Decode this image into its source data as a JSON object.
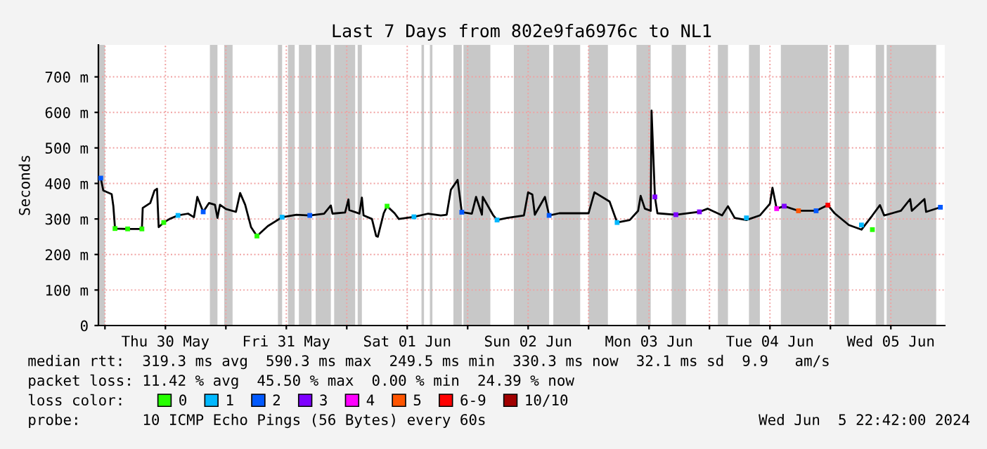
{
  "chart_data": {
    "type": "line",
    "title": "Last 7 Days from 802e9fa6976c to NL1",
    "ylabel": "Seconds",
    "xlim": [
      "2024-05-29T22:42",
      "2024-06-05T22:42"
    ],
    "xticks": [
      {
        "value": "2024-05-30T00:00",
        "label": null
      },
      {
        "value": "2024-05-30T12:00",
        "label": "Thu 30 May"
      },
      {
        "value": "2024-05-31T00:00",
        "label": null
      },
      {
        "value": "2024-05-31T12:00",
        "label": "Fri 31 May"
      },
      {
        "value": "2024-06-01T00:00",
        "label": null
      },
      {
        "value": "2024-06-01T12:00",
        "label": "Sat 01 Jun"
      },
      {
        "value": "2024-06-02T00:00",
        "label": null
      },
      {
        "value": "2024-06-02T12:00",
        "label": "Sun 02 Jun"
      },
      {
        "value": "2024-06-03T00:00",
        "label": null
      },
      {
        "value": "2024-06-03T12:00",
        "label": "Mon 03 Jun"
      },
      {
        "value": "2024-06-04T00:00",
        "label": null
      },
      {
        "value": "2024-06-04T12:00",
        "label": "Tue 04 Jun"
      },
      {
        "value": "2024-06-05T00:00",
        "label": null
      },
      {
        "value": "2024-06-05T12:00",
        "label": "Wed 05 Jun"
      }
    ],
    "ylim": [
      0,
      790
    ],
    "yticks": [
      0,
      {
        "value": 100,
        "label": "100 m"
      },
      {
        "value": 200,
        "label": "200 m"
      },
      {
        "value": 300,
        "label": "300 m"
      },
      {
        "value": 400,
        "label": "400 m"
      },
      {
        "value": 500,
        "label": "500 m"
      },
      {
        "value": 600,
        "label": "600 m"
      },
      {
        "value": 700,
        "label": "700 m"
      }
    ],
    "grid": true,
    "legend": "bottom",
    "legend_title": "loss color:",
    "series": [
      {
        "color": "#000000",
        "x": [
          "2024-05-29T23:10",
          "2024-05-29T23:40",
          "2024-05-30T01:20",
          "2024-05-30T01:40",
          "2024-05-30T02:00",
          "2024-05-30T04:30",
          "2024-05-30T07:20",
          "2024-05-30T07:30",
          "2024-05-30T09:00",
          "2024-05-30T09:50",
          "2024-05-30T10:20",
          "2024-05-30T10:40",
          "2024-05-30T11:40",
          "2024-05-30T12:50",
          "2024-05-30T14:30",
          "2024-05-30T16:30",
          "2024-05-30T17:40",
          "2024-05-30T18:20",
          "2024-05-30T19:30",
          "2024-05-30T20:40",
          "2024-05-30T21:50",
          "2024-05-30T22:20",
          "2024-05-30T22:50",
          "2024-05-31T00:00",
          "2024-05-31T02:00",
          "2024-05-31T02:50",
          "2024-05-31T03:50",
          "2024-05-31T05:00",
          "2024-05-31T06:10",
          "2024-05-31T08:20",
          "2024-05-31T11:10",
          "2024-05-31T14:00",
          "2024-05-31T16:40",
          "2024-05-31T19:30",
          "2024-05-31T20:50",
          "2024-05-31T21:10",
          "2024-05-31T23:40",
          "2024-06-01T00:20",
          "2024-06-01T00:30",
          "2024-06-01T02:30",
          "2024-06-01T03:00",
          "2024-06-01T03:20",
          "2024-06-01T05:00",
          "2024-06-01T05:50",
          "2024-06-01T06:10",
          "2024-06-01T07:20",
          "2024-06-01T08:00",
          "2024-06-01T09:30",
          "2024-06-01T10:20",
          "2024-06-01T13:20",
          "2024-06-01T16:10",
          "2024-06-01T18:40",
          "2024-06-01T19:50",
          "2024-06-01T20:40",
          "2024-06-01T22:00",
          "2024-06-01T22:50",
          "2024-06-02T00:50",
          "2024-06-02T01:40",
          "2024-06-02T02:50",
          "2024-06-02T03:00",
          "2024-06-02T05:00",
          "2024-06-02T05:50",
          "2024-06-02T07:50",
          "2024-06-02T11:10",
          "2024-06-02T12:00",
          "2024-06-02T12:50",
          "2024-06-02T13:20",
          "2024-06-02T15:20",
          "2024-06-02T16:10",
          "2024-06-02T18:10",
          "2024-06-02T19:50",
          "2024-06-03T00:00",
          "2024-06-03T01:10",
          "2024-06-03T04:10",
          "2024-06-03T05:40",
          "2024-06-03T08:10",
          "2024-06-03T09:50",
          "2024-06-03T10:20",
          "2024-06-03T11:10",
          "2024-06-03T12:20",
          "2024-06-03T12:30",
          "2024-06-03T13:10",
          "2024-06-03T13:40",
          "2024-06-03T17:20",
          "2024-06-03T22:00",
          "2024-06-03T23:40",
          "2024-06-04T02:30",
          "2024-06-04T03:40",
          "2024-06-04T05:00",
          "2024-06-04T07:20",
          "2024-06-04T10:00",
          "2024-06-04T12:00",
          "2024-06-04T12:30",
          "2024-06-04T13:20",
          "2024-06-04T14:50",
          "2024-06-04T17:40",
          "2024-06-04T21:10",
          "2024-06-04T23:30",
          "2024-06-05T00:50",
          "2024-06-05T03:40",
          "2024-06-05T06:10",
          "2024-06-05T08:20",
          "2024-06-05T09:50",
          "2024-06-05T10:40",
          "2024-06-05T14:00",
          "2024-06-05T15:50",
          "2024-06-05T16:10",
          "2024-06-05T18:40",
          "2024-06-05T19:00",
          "2024-06-05T21:50"
        ],
        "values": [
          415,
          380,
          370,
          336,
          273,
          272,
          272,
          331,
          345,
          380,
          385,
          277,
          290,
          300,
          310,
          315,
          305,
          362,
          320,
          345,
          340,
          303,
          340,
          328,
          320,
          373,
          340,
          277,
          252,
          280,
          305,
          312,
          310,
          315,
          338,
          315,
          318,
          355,
          325,
          315,
          360,
          310,
          300,
          252,
          250,
          316,
          336,
          316,
          300,
          306,
          315,
          310,
          312,
          382,
          410,
          319,
          315,
          362,
          312,
          362,
          312,
          297,
          303,
          310,
          375,
          369,
          312,
          362,
          310,
          316,
          316,
          316,
          375,
          349,
          290,
          297,
          323,
          365,
          329,
          323,
          605,
          362,
          316,
          312,
          320,
          329,
          310,
          336,
          303,
          297,
          310,
          343,
          388,
          329,
          336,
          323,
          323,
          339,
          316,
          283,
          270,
          310,
          339,
          310,
          323,
          356,
          323,
          356,
          320,
          333
        ]
      },
      {
        "type": "scatter",
        "name": "0",
        "color": "#26ff00",
        "marker": "square",
        "x": [
          "2024-05-30T02:00",
          "2024-05-30T04:30",
          "2024-05-30T07:20",
          "2024-05-30T11:40",
          "2024-05-31T06:10",
          "2024-06-01T08:00",
          "2024-06-05T08:20"
        ],
        "values": [
          273,
          272,
          272,
          290,
          252,
          336,
          270
        ]
      },
      {
        "type": "scatter",
        "name": "1",
        "color": "#00b8ff",
        "marker": "square",
        "x": [
          "2024-05-30T14:30",
          "2024-05-31T11:10",
          "2024-06-01T13:20",
          "2024-06-02T05:50",
          "2024-06-03T05:40",
          "2024-06-04T07:20",
          "2024-06-05T06:10"
        ],
        "values": [
          310,
          305,
          306,
          297,
          290,
          303,
          283
        ]
      },
      {
        "type": "scatter",
        "name": "2",
        "color": "#0059ff",
        "marker": "square",
        "x": [
          "2024-05-29T23:10",
          "2024-05-30T19:30",
          "2024-05-31T16:40",
          "2024-06-01T22:50",
          "2024-06-02T16:10",
          "2024-06-04T21:10",
          "2024-06-05T21:50"
        ],
        "values": [
          415,
          320,
          310,
          319,
          310,
          323,
          333
        ]
      },
      {
        "type": "scatter",
        "name": "3",
        "color": "#7e00ff",
        "marker": "square",
        "x": [
          "2024-06-03T13:10",
          "2024-06-03T17:20",
          "2024-06-03T22:00",
          "2024-06-04T14:50"
        ],
        "values": [
          362,
          312,
          320,
          336
        ]
      },
      {
        "type": "scatter",
        "name": "4",
        "color": "#ff00ff",
        "marker": "square",
        "x": [
          "2024-06-04T13:20"
        ],
        "values": [
          329
        ]
      },
      {
        "type": "scatter",
        "name": "5",
        "color": "#ff5500",
        "marker": "square",
        "x": [
          "2024-06-04T17:40"
        ],
        "values": [
          323
        ]
      },
      {
        "type": "scatter",
        "name": "6-9",
        "color": "#ff0000",
        "marker": "square",
        "x": [
          "2024-06-04T23:30"
        ],
        "values": [
          339
        ]
      },
      {
        "type": "scatter",
        "name": "10/10",
        "color": "#a10000",
        "marker": "square"
      }
    ],
    "bands": [
      {
        "axis": "x",
        "from": "2024-05-29T22:50",
        "to": "2024-05-30T00:00",
        "color": "#c8c8c8"
      },
      {
        "axis": "x",
        "from": "2024-05-30T20:50",
        "to": "2024-05-30T22:20",
        "color": "#c8c8c8"
      },
      {
        "axis": "x",
        "from": "2024-05-30T23:40",
        "to": "2024-05-31T01:20",
        "color": "#c8c8c8"
      },
      {
        "axis": "x",
        "from": "2024-05-31T10:20",
        "to": "2024-05-31T11:10",
        "color": "#c8c8c8"
      },
      {
        "axis": "x",
        "from": "2024-05-31T12:20",
        "to": "2024-05-31T13:40",
        "color": "#c8c8c8"
      },
      {
        "axis": "x",
        "from": "2024-05-31T14:30",
        "to": "2024-05-31T17:00",
        "color": "#c8c8c8"
      },
      {
        "axis": "x",
        "from": "2024-05-31T17:50",
        "to": "2024-05-31T20:50",
        "color": "#c8c8c8"
      },
      {
        "axis": "x",
        "from": "2024-05-31T21:30",
        "to": "2024-06-01T01:40",
        "color": "#c8c8c8"
      },
      {
        "axis": "x",
        "from": "2024-06-01T02:10",
        "to": "2024-06-01T03:00",
        "color": "#c8c8c8"
      },
      {
        "axis": "x",
        "from": "2024-06-01T14:50",
        "to": "2024-06-01T15:20",
        "color": "#c8c8c8"
      },
      {
        "axis": "x",
        "from": "2024-06-01T16:30",
        "to": "2024-06-01T17:00",
        "color": "#c8c8c8"
      },
      {
        "axis": "x",
        "from": "2024-06-01T21:10",
        "to": "2024-06-01T22:50",
        "color": "#c8c8c8"
      },
      {
        "axis": "x",
        "from": "2024-06-01T23:10",
        "to": "2024-06-02T04:30",
        "color": "#c8c8c8"
      },
      {
        "axis": "x",
        "from": "2024-06-02T09:10",
        "to": "2024-06-02T16:10",
        "color": "#c8c8c8"
      },
      {
        "axis": "x",
        "from": "2024-06-02T17:00",
        "to": "2024-06-02T22:20",
        "color": "#c8c8c8"
      },
      {
        "axis": "x",
        "from": "2024-06-03T00:00",
        "to": "2024-06-03T03:50",
        "color": "#c8c8c8"
      },
      {
        "axis": "x",
        "from": "2024-06-03T09:30",
        "to": "2024-06-03T12:20",
        "color": "#c8c8c8"
      },
      {
        "axis": "x",
        "from": "2024-06-03T16:30",
        "to": "2024-06-03T19:20",
        "color": "#c8c8c8"
      },
      {
        "axis": "x",
        "from": "2024-06-04T01:40",
        "to": "2024-06-04T03:40",
        "color": "#c8c8c8"
      },
      {
        "axis": "x",
        "from": "2024-06-04T07:50",
        "to": "2024-06-04T10:00",
        "color": "#c8c8c8"
      },
      {
        "axis": "x",
        "from": "2024-06-04T14:10",
        "to": "2024-06-04T23:30",
        "color": "#c8c8c8"
      },
      {
        "axis": "x",
        "from": "2024-06-05T00:50",
        "to": "2024-06-05T03:40",
        "color": "#c8c8c8"
      },
      {
        "axis": "x",
        "from": "2024-06-05T09:00",
        "to": "2024-06-05T10:40",
        "color": "#c8c8c8"
      },
      {
        "axis": "x",
        "from": "2024-06-05T11:10",
        "to": "2024-06-05T21:00",
        "color": "#c8c8c8"
      }
    ],
    "annotations": [
      "median rtt:  319.3 ms avg  590.3 ms max  249.5 ms min  330.3 ms now  32.1 ms sd  9.9   am/s",
      "packet loss: 11.42 % avg  45.50 % max  0.00 % min  24.39 % now",
      "probe:       10 ICMP Echo Pings (56 Bytes) every 60s",
      "Wed Jun  5 22:42:00 2024"
    ]
  }
}
